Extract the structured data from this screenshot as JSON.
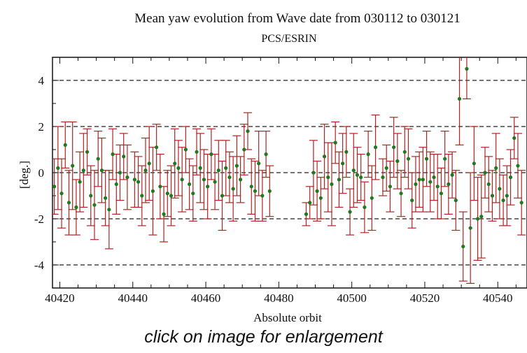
{
  "caption": "click on image for enlargement",
  "chart_data": {
    "type": "scatter",
    "title": "Mean yaw evolution from Wave date  from 030112 to 030121",
    "subtitle": "PCS/ESRIN",
    "xlabel": "Absolute orbit",
    "ylabel": "[deg.]",
    "xlim": [
      40418,
      40548
    ],
    "ylim": [
      -5,
      5
    ],
    "x_ticks": [
      40420,
      40440,
      40460,
      40480,
      40500,
      40520,
      40540
    ],
    "y_ticks": [
      -4,
      -2,
      0,
      2,
      4
    ],
    "dashed_gridlines_y": [
      -4,
      -2,
      0,
      2,
      4
    ],
    "marker_color": "#1f7a1f",
    "errorbar_color": "#b22222",
    "series": [
      {
        "points": [
          {
            "x": 40418.5,
            "y": -0.6,
            "err": 1.2
          },
          {
            "x": 40419.5,
            "y": 0.2,
            "err": 1.8
          },
          {
            "x": 40420.5,
            "y": -0.9,
            "err": 1.5
          },
          {
            "x": 40421.5,
            "y": 1.2,
            "err": 1.0
          },
          {
            "x": 40422.5,
            "y": -1.3,
            "err": 1.4
          },
          {
            "x": 40423.5,
            "y": 0.3,
            "err": 1.9
          },
          {
            "x": 40424.5,
            "y": -1.5,
            "err": 1.2
          },
          {
            "x": 40425.5,
            "y": -0.4,
            "err": 1.3
          },
          {
            "x": 40426.5,
            "y": 0.1,
            "err": 1.6
          },
          {
            "x": 40427.5,
            "y": 0.9,
            "err": 1.0
          },
          {
            "x": 40428.5,
            "y": -1.0,
            "err": 1.3
          },
          {
            "x": 40429.5,
            "y": -1.4,
            "err": 1.5
          },
          {
            "x": 40430.5,
            "y": 0.6,
            "err": 1.2
          },
          {
            "x": 40431.5,
            "y": 0.1,
            "err": 1.4
          },
          {
            "x": 40432.5,
            "y": -1.1,
            "err": 1.2
          },
          {
            "x": 40433.5,
            "y": -1.6,
            "err": 1.7
          },
          {
            "x": 40434.5,
            "y": 0.8,
            "err": 1.1
          },
          {
            "x": 40435.5,
            "y": -0.5,
            "err": 1.3
          },
          {
            "x": 40436.5,
            "y": 0.0,
            "err": 1.2
          },
          {
            "x": 40437.5,
            "y": 0.7,
            "err": 1.0
          },
          {
            "x": 40438.5,
            "y": -0.2,
            "err": 1.4
          },
          {
            "x": 40440.5,
            "y": -0.3,
            "err": 1.2
          },
          {
            "x": 40441.5,
            "y": -0.4,
            "err": 1.1
          },
          {
            "x": 40442.5,
            "y": -1.0,
            "err": 1.3
          },
          {
            "x": 40443.5,
            "y": 0.1,
            "err": 1.4
          },
          {
            "x": 40444.5,
            "y": 0.4,
            "err": 1.6
          },
          {
            "x": 40445.5,
            "y": -0.8,
            "err": 1.9
          },
          {
            "x": 40446.5,
            "y": 1.1,
            "err": 1.0
          },
          {
            "x": 40447.5,
            "y": -0.6,
            "err": 1.4
          },
          {
            "x": 40448.5,
            "y": -1.8,
            "err": 1.2
          },
          {
            "x": 40449.5,
            "y": -0.9,
            "err": 1.0
          },
          {
            "x": 40450.5,
            "y": -1.0,
            "err": 1.3
          },
          {
            "x": 40451.5,
            "y": 0.4,
            "err": 1.5
          },
          {
            "x": 40452.5,
            "y": 0.2,
            "err": 1.2
          },
          {
            "x": 40453.5,
            "y": -0.3,
            "err": 1.4
          },
          {
            "x": 40454.5,
            "y": 1.0,
            "err": 1.0
          },
          {
            "x": 40455.5,
            "y": -0.5,
            "err": 1.1
          },
          {
            "x": 40456.5,
            "y": -0.9,
            "err": 1.2
          },
          {
            "x": 40457.5,
            "y": 0.9,
            "err": 1.0
          },
          {
            "x": 40458.5,
            "y": 0.2,
            "err": 1.5
          },
          {
            "x": 40459.5,
            "y": -0.3,
            "err": 1.3
          },
          {
            "x": 40460.5,
            "y": -0.6,
            "err": 1.4
          },
          {
            "x": 40461.5,
            "y": 0.8,
            "err": 1.1
          },
          {
            "x": 40462.5,
            "y": -0.4,
            "err": 1.2
          },
          {
            "x": 40463.5,
            "y": 0.1,
            "err": 1.3
          },
          {
            "x": 40464.5,
            "y": -1.0,
            "err": 1.5
          },
          {
            "x": 40465.5,
            "y": 0.2,
            "err": 1.2
          },
          {
            "x": 40466.5,
            "y": -0.2,
            "err": 1.1
          },
          {
            "x": 40467.5,
            "y": -0.7,
            "err": 1.4
          },
          {
            "x": 40468.5,
            "y": 0.3,
            "err": 1.3
          },
          {
            "x": 40469.5,
            "y": -0.3,
            "err": 1.0
          },
          {
            "x": 40470.5,
            "y": 1.0,
            "err": 1.1
          },
          {
            "x": 40471.5,
            "y": 1.8,
            "err": 0.8
          },
          {
            "x": 40472.5,
            "y": -0.6,
            "err": 1.2
          },
          {
            "x": 40473.5,
            "y": -0.8,
            "err": 1.3
          },
          {
            "x": 40474.5,
            "y": 0.4,
            "err": 1.4
          },
          {
            "x": 40475.5,
            "y": -1.0,
            "err": 1.1
          },
          {
            "x": 40476.5,
            "y": 0.8,
            "err": 1.0
          },
          {
            "x": 40477.5,
            "y": -0.8,
            "err": 1.1
          },
          {
            "x": 40487.5,
            "y": -1.8,
            "err": 0.5
          },
          {
            "x": 40488.5,
            "y": -1.3,
            "err": 0.7
          },
          {
            "x": 40489.5,
            "y": 0.0,
            "err": 1.4
          },
          {
            "x": 40490.5,
            "y": -0.8,
            "err": 1.3
          },
          {
            "x": 40491.5,
            "y": -1.1,
            "err": 0.9
          },
          {
            "x": 40492.5,
            "y": 0.7,
            "err": 1.4
          },
          {
            "x": 40493.5,
            "y": -0.2,
            "err": 1.5
          },
          {
            "x": 40494.5,
            "y": -0.5,
            "err": 1.8
          },
          {
            "x": 40495.5,
            "y": 1.3,
            "err": 0.9
          },
          {
            "x": 40496.5,
            "y": -0.3,
            "err": 1.2
          },
          {
            "x": 40497.5,
            "y": 0.4,
            "err": 1.3
          },
          {
            "x": 40498.5,
            "y": 0.9,
            "err": 1.1
          },
          {
            "x": 40499.5,
            "y": -1.7,
            "err": 1.0
          },
          {
            "x": 40500.5,
            "y": 0.1,
            "err": 1.6
          },
          {
            "x": 40501.5,
            "y": -0.1,
            "err": 1.2
          },
          {
            "x": 40502.5,
            "y": -0.2,
            "err": 1.0
          },
          {
            "x": 40503.5,
            "y": -1.5,
            "err": 1.1
          },
          {
            "x": 40504.5,
            "y": 0.8,
            "err": 1.0
          },
          {
            "x": 40505.5,
            "y": -1.1,
            "err": 1.4
          },
          {
            "x": 40506.5,
            "y": 1.1,
            "err": 1.4
          },
          {
            "x": 40508.5,
            "y": -0.2,
            "err": 0.8
          },
          {
            "x": 40509.5,
            "y": 0.2,
            "err": 1.0
          },
          {
            "x": 40510.5,
            "y": -0.6,
            "err": 1.1
          },
          {
            "x": 40511.5,
            "y": 1.1,
            "err": 1.3
          },
          {
            "x": 40512.5,
            "y": 0.5,
            "err": 1.2
          },
          {
            "x": 40513.5,
            "y": -0.9,
            "err": 1.0
          },
          {
            "x": 40514.5,
            "y": 0.9,
            "err": 1.1
          },
          {
            "x": 40515.5,
            "y": 0.6,
            "err": 1.3
          },
          {
            "x": 40516.5,
            "y": -1.2,
            "err": 1.2
          },
          {
            "x": 40517.5,
            "y": -0.5,
            "err": 1.2
          },
          {
            "x": 40518.5,
            "y": -0.3,
            "err": 1.2
          },
          {
            "x": 40519.5,
            "y": -0.3,
            "err": 1.4
          },
          {
            "x": 40520.5,
            "y": 0.6,
            "err": 1.2
          },
          {
            "x": 40521.5,
            "y": -0.4,
            "err": 1.3
          },
          {
            "x": 40522.5,
            "y": -0.2,
            "err": 1.0
          },
          {
            "x": 40523.5,
            "y": -0.6,
            "err": 1.4
          },
          {
            "x": 40524.5,
            "y": -0.9,
            "err": 1.1
          },
          {
            "x": 40525.5,
            "y": 0.6,
            "err": 1.2
          },
          {
            "x": 40526.5,
            "y": -0.5,
            "err": 1.3
          },
          {
            "x": 40527.5,
            "y": -0.1,
            "err": 1.0
          },
          {
            "x": 40528.5,
            "y": -1.2,
            "err": 1.3
          },
          {
            "x": 40529.5,
            "y": 3.2,
            "err": 2.0
          },
          {
            "x": 40530.5,
            "y": -3.2,
            "err": 1.5
          },
          {
            "x": 40531.5,
            "y": 4.5,
            "err": 1.3
          },
          {
            "x": 40532.5,
            "y": -2.4,
            "err": 2.4
          },
          {
            "x": 40533.5,
            "y": 0.4,
            "err": 1.6
          },
          {
            "x": 40534.5,
            "y": -2.0,
            "err": 1.8
          },
          {
            "x": 40535.5,
            "y": -1.9,
            "err": 1.8
          },
          {
            "x": 40536.5,
            "y": 0.0,
            "err": 1.1
          },
          {
            "x": 40537.5,
            "y": -0.5,
            "err": 1.2
          },
          {
            "x": 40538.5,
            "y": -1.0,
            "err": 1.1
          },
          {
            "x": 40539.5,
            "y": 0.2,
            "err": 1.5
          },
          {
            "x": 40540.5,
            "y": -0.7,
            "err": 1.3
          },
          {
            "x": 40541.5,
            "y": -1.2,
            "err": 1.1
          },
          {
            "x": 40542.5,
            "y": -1.0,
            "err": 1.3
          },
          {
            "x": 40543.5,
            "y": -0.2,
            "err": 1.2
          },
          {
            "x": 40544.5,
            "y": 1.5,
            "err": 0.9
          },
          {
            "x": 40545.5,
            "y": 0.3,
            "err": 1.4
          },
          {
            "x": 40546.5,
            "y": -1.3,
            "err": 1.4
          }
        ]
      }
    ]
  }
}
